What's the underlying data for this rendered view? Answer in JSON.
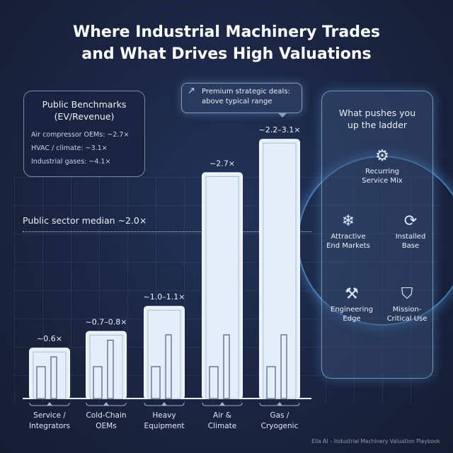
{
  "title": {
    "line1": "Where Industrial Machinery Trades",
    "line2": "and What Drives High Valuations"
  },
  "benchmarks": {
    "title_line1": "Public Benchmarks",
    "title_line2": "(EV/Revenue)",
    "rows": [
      "Air compressor OEMs: ~2.7×",
      "HVAC / climate: ~3.1×",
      "Industrial gases: ~4.1×"
    ]
  },
  "callout": {
    "icon": "arrow-up-right-icon",
    "line1": "Premium strategic deals:",
    "line2": "above typical range"
  },
  "median": {
    "label": "Public sector median ~2.0×"
  },
  "chart_data": {
    "type": "bar",
    "categories": [
      [
        "Service /",
        "Integrators"
      ],
      [
        "Cold-Chain",
        "OEMs"
      ],
      [
        "Heavy",
        "Equipment"
      ],
      [
        "Air &",
        "Climate"
      ],
      [
        "Gas /",
        "Cryogenic"
      ]
    ],
    "value_labels": [
      "~0.6×",
      "~0.7–0.8×",
      "~1.0–1.1×",
      "~2.7×",
      "~2.2–3.1×"
    ],
    "low": [
      0.6,
      0.7,
      1.0,
      2.7,
      2.2
    ],
    "high": [
      0.6,
      0.8,
      1.1,
      2.7,
      3.1
    ],
    "reference_line": {
      "value": 2.0,
      "label": "Public sector median ~2.0×"
    },
    "unit": "EV/Revenue multiple",
    "colors": {
      "bar": "#e4eef8",
      "bar_border": "#f4f8fd",
      "background": "#17213a"
    }
  },
  "panel": {
    "title_line1": "What pushes you",
    "title_line2": "up the ladder",
    "drivers": [
      {
        "icon": "wrench-gear-icon",
        "glyph": "⚙",
        "l1": "Recurring",
        "l2": "Service Mix"
      },
      {
        "icon": "pipe-leaf-snowflake-icon",
        "glyph": "❄",
        "l1": "Attractive",
        "l2": "End Markets"
      },
      {
        "icon": "conveyor-gear-icon",
        "glyph": "⟳",
        "l1": "Installed",
        "l2": "Base"
      },
      {
        "icon": "bolt-blueprint-icon",
        "glyph": "⚒",
        "l1": "Engineering",
        "l2": "Edge"
      },
      {
        "icon": "shield-check-icon",
        "glyph": "⛉",
        "l1": "Mission-",
        "l2": "Critical Use"
      }
    ]
  },
  "footer": "Ella AI – Industrial Machinery Valuation Playbook"
}
